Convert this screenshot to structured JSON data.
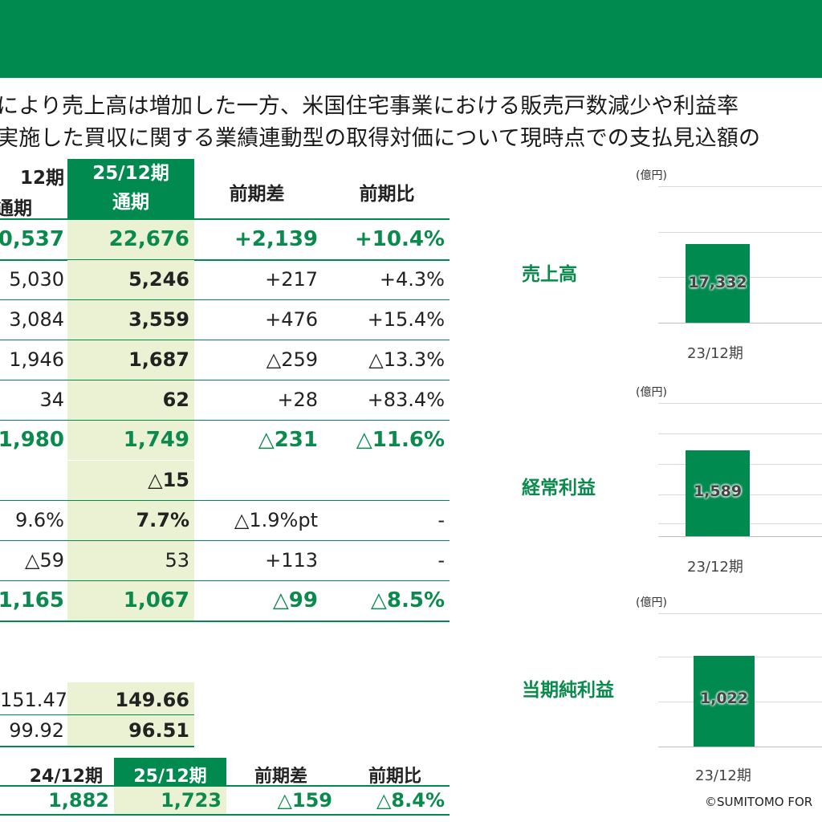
{
  "lead": {
    "line1": "により売上高は増加した一方、米国住宅事業における販売戸数減少や利益率",
    "line2": "実施した買収に関する業績連動型の取得対価について現時点での支払見込額の"
  },
  "table": {
    "headers": {
      "prev_line1": "12期",
      "prev_line2": "通期",
      "cur_line1": "25/12期",
      "cur_line2": "通期",
      "diff": "前期差",
      "ratio": "前期比"
    },
    "rows": [
      {
        "prev": "0,537",
        "cur": "22,676",
        "diff": "+2,139",
        "ratio": "+10.4%"
      },
      {
        "prev": "5,030",
        "cur": "5,246",
        "diff": "+217",
        "ratio": "+4.3%"
      },
      {
        "prev": "3,084",
        "cur": "3,559",
        "diff": "+476",
        "ratio": "+15.4%"
      },
      {
        "prev": "1,946",
        "cur": "1,687",
        "diff": "△259",
        "ratio": "△13.3%"
      },
      {
        "prev": "34",
        "cur": "62",
        "diff": "+28",
        "ratio": "+83.4%"
      },
      {
        "prev": "1,980",
        "cur": "1,749",
        "diff": "△231",
        "ratio": "△11.6%"
      },
      {
        "prev": "",
        "cur": "△15",
        "diff": "",
        "ratio": ""
      },
      {
        "prev": "9.6%",
        "cur": "7.7%",
        "diff": "△1.9%pt",
        "ratio": "-"
      },
      {
        "prev": "△59",
        "cur": "53",
        "diff": "+113",
        "ratio": "-"
      },
      {
        "prev": "1,165",
        "cur": "1,067",
        "diff": "△99",
        "ratio": "△8.5%"
      }
    ]
  },
  "per_share": {
    "rows": [
      {
        "prev": "151.47",
        "cur": "149.66"
      },
      {
        "prev": "99.92",
        "cur": "96.51"
      }
    ]
  },
  "bottom_table": {
    "headers": {
      "prev": "24/12期",
      "cur": "25/12期",
      "diff": "前期差",
      "ratio": "前期比"
    },
    "row": {
      "prev": "1,882",
      "cur": "1,723",
      "diff": "△159",
      "ratio": "△8.4%"
    }
  },
  "charts": [
    {
      "label": "売上高",
      "unit": "(億円)",
      "value_label": "17,332",
      "period": "23/12期"
    },
    {
      "label": "経常利益",
      "unit": "(億円)",
      "value_label": "1,589",
      "period": "23/12期"
    },
    {
      "label": "当期純利益",
      "unit": "(億円)",
      "value_label": "1,022",
      "period": "23/12期"
    }
  ],
  "chart_data": [
    {
      "type": "bar",
      "categories": [
        "23/12期"
      ],
      "values": [
        17332
      ],
      "ylabel": "(億円)"
    },
    {
      "type": "bar",
      "categories": [
        "23/12期"
      ],
      "values": [
        1589
      ],
      "ylabel": "(億円)"
    },
    {
      "type": "bar",
      "categories": [
        "23/12期"
      ],
      "values": [
        1022
      ],
      "ylabel": "(億円)"
    }
  ],
  "footer": {
    "copyright": "©SUMITOMO FOR"
  },
  "colors": {
    "brand_green": "#008a4f",
    "highlight_bg": "#eaf2d3",
    "accent_text": "#0a8a4c"
  }
}
